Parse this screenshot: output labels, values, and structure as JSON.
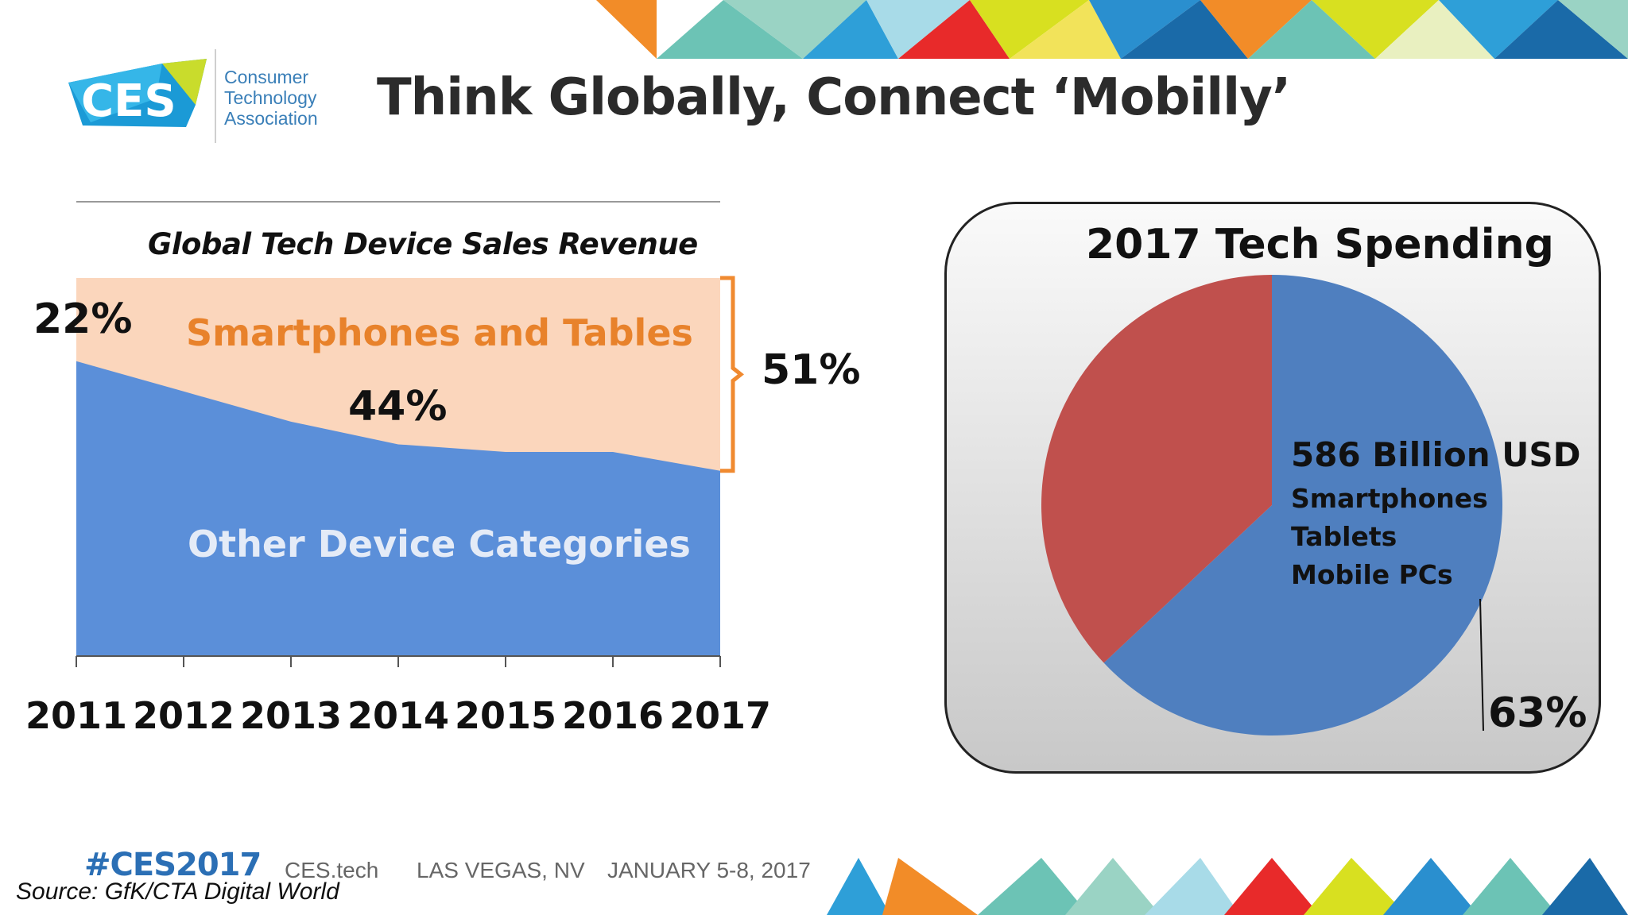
{
  "title": "Think Globally, Connect ‘Mobilly’",
  "logo": {
    "mark": "CES",
    "line1": "Consumer",
    "line2": "Technology",
    "line3": "Association"
  },
  "colors": {
    "blue": "#5b8fd9",
    "peach": "#fbd6bc",
    "orange": "#e8822b",
    "pie_blue": "#4f7fbf",
    "pie_red": "#c0504d"
  },
  "chart_data": [
    {
      "type": "area",
      "title": "Global Tech Device Sales Revenue",
      "x": [
        "2011",
        "2012",
        "2013",
        "2014",
        "2015",
        "2016",
        "2017"
      ],
      "ylim": [
        0,
        100
      ],
      "series": [
        {
          "name": "Other Device Categories",
          "values": [
            78,
            70,
            62,
            56,
            54,
            54,
            49
          ]
        },
        {
          "name": "Smartphones and Tables",
          "values": [
            22,
            30,
            38,
            44,
            46,
            46,
            51
          ]
        }
      ],
      "annotations": [
        "22%",
        "44%",
        "51%"
      ]
    },
    {
      "type": "pie",
      "title": "2017 Tech Spending",
      "slices": [
        {
          "name": "Smartphones Tablets Mobile PCs",
          "value": 63
        },
        {
          "name": "",
          "value": 37
        }
      ],
      "annotations": {
        "main": "586 Billion USD",
        "items": [
          "Smartphones",
          "Tablets",
          "Mobile PCs"
        ],
        "percent": "63%"
      }
    }
  ],
  "footer": {
    "hashtag": "#CES2017",
    "site": "CES.tech",
    "location": "LAS VEGAS, NV",
    "dates": "JANUARY 5-8, 2017",
    "source": "Source: GfK/CTA Digital World"
  }
}
